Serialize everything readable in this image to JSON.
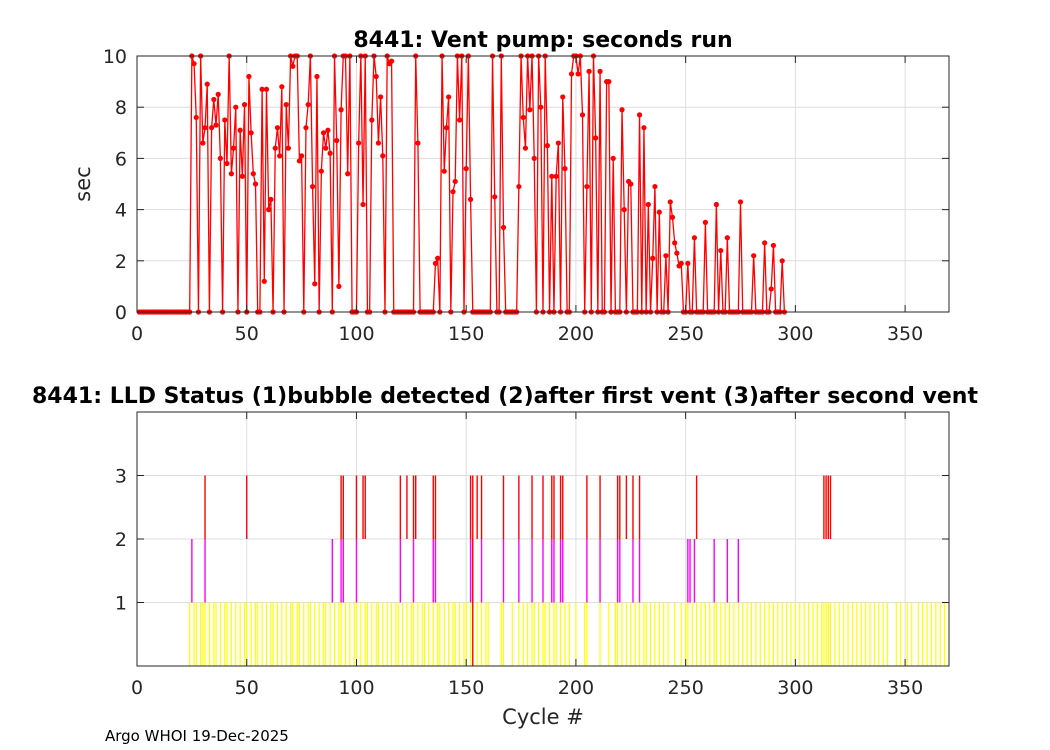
{
  "footer_text": "Argo WHOI 19-Dec-2025",
  "chart_data": [
    {
      "type": "line",
      "title": "8441: Vent pump: seconds run",
      "xlabel": "",
      "ylabel": "sec",
      "xlim": [
        0,
        370
      ],
      "ylim": [
        0,
        10
      ],
      "xticks": [
        "0",
        "50",
        "100",
        "150",
        "200",
        "250",
        "300",
        "350"
      ],
      "yticks": [
        "0",
        "2",
        "4",
        "6",
        "8",
        "10"
      ],
      "grid": true,
      "color": "#ff0000",
      "marker": "filled-circle",
      "x_start": 1,
      "series": [
        {
          "values": [
            0,
            0,
            0,
            0,
            0,
            0,
            0,
            0,
            0,
            0,
            0,
            0,
            0,
            0,
            0,
            0,
            0,
            0,
            0,
            0,
            0,
            0,
            0,
            0,
            10,
            9.7,
            7.6,
            0,
            10,
            6.6,
            7.2,
            8.9,
            0,
            7.2,
            8.3,
            7.3,
            8.5,
            6.0,
            0,
            7.5,
            5.8,
            10,
            5.4,
            6.4,
            8.0,
            0,
            7.1,
            5.3,
            8.1,
            0,
            9.2,
            7.0,
            5.4,
            5.0,
            0,
            0,
            8.7,
            1.2,
            8.7,
            4.0,
            4.4,
            0,
            6.4,
            7.2,
            6.1,
            8.8,
            0,
            8.1,
            6.4,
            10,
            9.6,
            10,
            10,
            5.9,
            6.1,
            0,
            7.2,
            8.1,
            10,
            4.9,
            1.1,
            9.2,
            0,
            5.5,
            7.0,
            6.4,
            7.1,
            6.2,
            0,
            10,
            6.7,
            1.0,
            7.9,
            10,
            10,
            5.4,
            10,
            0,
            0,
            0,
            6.6,
            10,
            4.2,
            10,
            0,
            0,
            7.5,
            10,
            9.2,
            6.6,
            8.4,
            6.1,
            0,
            10,
            9.7,
            9.8,
            0,
            0,
            0,
            0,
            0,
            0,
            0,
            0,
            0,
            0,
            10,
            6.6,
            0,
            0,
            0,
            0,
            0,
            0,
            0,
            1.9,
            2.1,
            0,
            10,
            5.5,
            7.2,
            8.4,
            0,
            4.7,
            5.1,
            10,
            7.5,
            10,
            0,
            5.6,
            10,
            4.4,
            0,
            0,
            0,
            0,
            0,
            0,
            0,
            0,
            0,
            10,
            4.5,
            0,
            0,
            10,
            3.3,
            0,
            0,
            0,
            0,
            0,
            0,
            4.9,
            10,
            7.6,
            6.4,
            10,
            7.9,
            10,
            6.0,
            0,
            10,
            8.0,
            0,
            10,
            6.5,
            0,
            5.3,
            0,
            5.3,
            6.6,
            0,
            8.4,
            5.6,
            0,
            0,
            9.3,
            10,
            10,
            9.3,
            10,
            7.7,
            0,
            4.9,
            9.4,
            0,
            10,
            6.8,
            0,
            9.4,
            0,
            0,
            9.0,
            9.0,
            0,
            6.0,
            0,
            0,
            0,
            7.9,
            4.0,
            0,
            5.1,
            5.0,
            0,
            0,
            0,
            7.7,
            0,
            7.2,
            0,
            4.2,
            0,
            2.1,
            4.9,
            0,
            3.9,
            0,
            0,
            2.2,
            0,
            4.3,
            3.7,
            2.7,
            2.3,
            1.8,
            1.9,
            0,
            0,
            1.9,
            0,
            0,
            2.9,
            0,
            0,
            0,
            0,
            3.5,
            0,
            0,
            0,
            0,
            4.2,
            0,
            2.4,
            0,
            0,
            2.9,
            0,
            0,
            0,
            0,
            0,
            4.3,
            0,
            0,
            0,
            0,
            0,
            2.2,
            0,
            0,
            0,
            0,
            2.7,
            0,
            0,
            0.9,
            2.6,
            0,
            0,
            0,
            2.0,
            0
          ]
        }
      ]
    },
    {
      "type": "bar",
      "title": "8441: LLD Status   (1)bubble detected   (2)after first vent  (3)after second vent",
      "xlabel": "Cycle #",
      "ylabel": "",
      "xlim": [
        0,
        370
      ],
      "ylim": [
        0,
        4
      ],
      "xticks": [
        "0",
        "50",
        "100",
        "150",
        "200",
        "250",
        "300",
        "350"
      ],
      "yticks": [
        "1",
        "2",
        "3"
      ],
      "grid": true,
      "colors": {
        "1": "#ffff00",
        "2": "#ff00ff",
        "3": "#ff0000"
      },
      "level1_cycles": [
        24,
        26,
        27,
        29,
        30,
        31,
        33,
        35,
        36,
        38,
        40,
        41,
        43,
        45,
        47,
        49,
        50,
        52,
        54,
        55,
        57,
        59,
        61,
        62,
        64,
        66,
        68,
        70,
        71,
        73,
        74,
        76,
        78,
        79,
        81,
        83,
        85,
        86,
        88,
        90,
        92,
        93,
        95,
        97,
        99,
        100,
        102,
        104,
        105,
        107,
        109,
        110,
        112,
        114,
        116,
        118,
        119,
        121,
        123,
        125,
        126,
        128,
        130,
        131,
        133,
        135,
        137,
        138,
        140,
        142,
        144,
        145,
        147,
        149,
        150,
        152,
        153,
        155,
        157,
        159,
        160,
        166,
        167,
        171,
        174,
        176,
        178,
        180,
        181,
        183,
        185,
        186,
        188,
        190,
        191,
        193,
        195,
        197,
        200,
        204,
        205,
        211,
        215,
        218,
        219,
        221,
        223,
        225,
        227,
        229,
        231,
        232,
        234,
        236,
        238,
        240,
        242,
        245,
        248,
        250,
        251,
        253,
        255,
        257,
        259,
        261,
        263,
        264,
        266,
        268,
        270,
        272,
        274,
        276,
        278,
        280,
        282,
        284,
        286,
        288,
        290,
        292,
        294,
        296,
        298,
        300,
        302,
        304,
        306,
        308,
        310,
        312,
        313,
        314,
        315,
        316,
        318,
        320,
        322,
        324,
        326,
        328,
        330,
        332,
        334,
        336,
        338,
        340,
        342,
        346,
        348,
        351,
        353,
        356,
        358,
        360,
        362,
        364,
        366,
        368
      ],
      "level2_cycles": [
        25,
        31,
        89,
        93,
        94,
        100,
        120,
        126,
        135,
        136,
        152,
        153,
        157,
        167,
        174,
        180,
        185,
        189,
        190,
        193,
        194,
        205,
        211,
        219,
        220,
        226,
        229,
        251,
        252,
        254,
        263,
        269,
        274
      ],
      "level3_cycles": [
        31,
        50,
        93,
        94,
        100,
        103,
        104,
        120,
        123,
        126,
        127,
        135,
        136,
        152,
        153,
        155,
        157,
        167,
        174,
        180,
        185,
        189,
        190,
        193,
        194,
        205,
        211,
        219,
        220,
        223,
        226,
        229,
        255,
        313,
        314,
        315,
        316
      ],
      "red_to_baseline_cycles": [
        153
      ]
    }
  ]
}
